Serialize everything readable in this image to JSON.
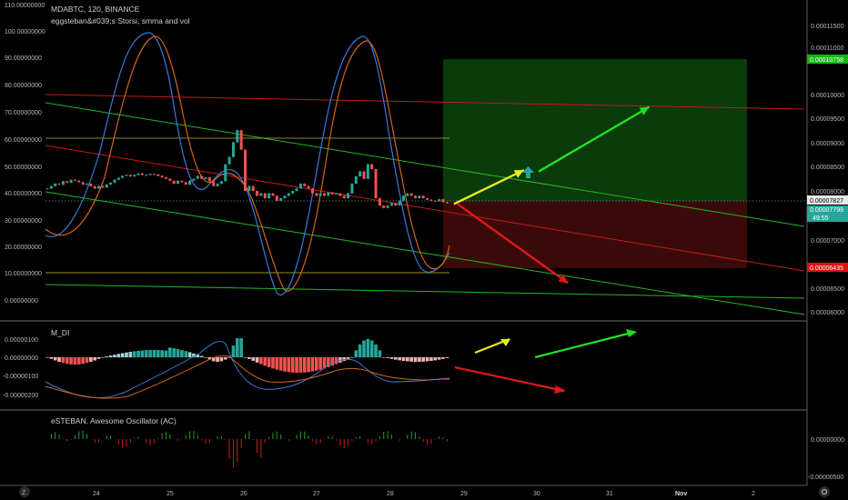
{
  "header": {
    "title": "MDABTC, 120, BINANCE",
    "indicator": "eggsteban&#039;s Storsi, smma and vol",
    "macd_title": "M_DI",
    "ao_title": "eSTEBAN. Awesome Oscillator (AC)"
  },
  "colors": {
    "up": "#26a69a",
    "down": "#ef5350",
    "green_line": "#22c422",
    "red_line": "#d01818",
    "yellow_line": "#c8c020",
    "blue_k": "#3b78d8",
    "orange_d": "#d0641c",
    "target_zone": "#0b3a0b",
    "stop_zone": "#3a0a0a",
    "price_badge": "#e8e8e8",
    "green_badge": "#14b814",
    "red_badge": "#e01010",
    "teal_badge": "#26a69a"
  },
  "chart_data": [
    {
      "type": "candlestick",
      "title": "MDABTC, 120, BINANCE",
      "x_ticks": [
        "24",
        "25",
        "26",
        "27",
        "28",
        "29",
        "30",
        "31",
        "Nov",
        "2"
      ],
      "left_axis_ticks": [
        "110.00000000",
        "100.00000000",
        "90.00000000",
        "80.00000000",
        "70.00000000",
        "60.00000000",
        "50.00000000",
        "40.00000000",
        "30.00000000",
        "20.00000000",
        "10.00000000",
        "0.00000000"
      ],
      "right_axis_ticks": [
        "0.00011500",
        "0.00011000",
        "0.00010000",
        "0.00009500",
        "0.00009000",
        "0.00008500",
        "0.00008000",
        "0.00007000",
        "0.00006500",
        "0.00006000",
        "0.00005500"
      ],
      "price_labels": {
        "last": "0.00007827",
        "current": "0.00007799",
        "countdown": "49:55",
        "target": "0.00010758",
        "stop": "0.00006435"
      },
      "ylim": [
        5.35e-05,
        0.0001185
      ],
      "closes": [
        8.1e-05,
        8.15e-05,
        8.2e-05,
        8.18e-05,
        8.25e-05,
        8.22e-05,
        8.28e-05,
        8.26e-05,
        8.23e-05,
        8.18e-05,
        8.2e-05,
        8.15e-05,
        8.1e-05,
        8.15e-05,
        8.12e-05,
        8.18e-05,
        8.22e-05,
        8.28e-05,
        8.32e-05,
        8.36e-05,
        8.38e-05,
        8.35e-05,
        8.38e-05,
        8.41e-05,
        8.38e-05,
        8.38e-05,
        8.4e-05,
        8.39e-05,
        8.36e-05,
        8.33e-05,
        8.3e-05,
        8.26e-05,
        8.2e-05,
        8.26e-05,
        8.23e-05,
        8.18e-05,
        8.26e-05,
        8.3e-05,
        8.36e-05,
        8.3e-05,
        8.33e-05,
        8.25e-05,
        8.15e-05,
        8.2e-05,
        8.25e-05,
        8.6e-05,
        8.75e-05,
        9.05e-05,
        9.3e-05,
        8.9e-05,
        8.05e-05,
        8.15e-05,
        8.05e-05,
        7.95e-05,
        8e-05,
        7.9e-05,
        8e-05,
        7.95e-05,
        7.85e-05,
        7.9e-05,
        7.95e-05,
        8e-05,
        8.05e-05,
        8.1e-05,
        8.2e-05,
        8.15e-05,
        8.1e-05,
        8e-05,
        7.95e-05,
        8e-05,
        7.95e-05,
        8.02e-05,
        7.98e-05,
        8e-05,
        7.95e-05,
        7.9e-05,
        8e-05,
        8.2e-05,
        8.35e-05,
        8.45e-05,
        8.3e-05,
        8.6e-05,
        8.5e-05,
        7.9e-05,
        7.75e-05,
        7.7e-05,
        7.75e-05,
        7.8e-05,
        7.75e-05,
        7.85e-05,
        7.95e-05,
        8e-05,
        7.95e-05,
        7.9e-05,
        7.95e-05,
        7.9e-05,
        7.87e-05,
        7.85e-05,
        7.84e-05,
        7.88e-05,
        7.82e-05,
        7.8e-05
      ],
      "projections": [
        {
          "name": "",
          "color": "#e8e820",
          "from": [
            7.78e-05,
            28.85
          ],
          "to": [
            8.48e-05,
            29.8
          ]
        },
        {
          "name": "",
          "color": "#22e022",
          "from": [
            8.45e-05,
            30.0
          ],
          "to": [
            9.78e-05,
            31.5
          ]
        },
        {
          "name": "",
          "color": "#e01818",
          "from": [
            7.78e-05,
            28.9
          ],
          "to": [
            6.15e-05,
            30.4
          ]
        }
      ]
    },
    {
      "type": "line",
      "title": "M_DI",
      "left_axis_ticks": [
        "0.00000100",
        "0.00000000",
        "-0.00000100",
        "-0.00000200"
      ],
      "ylim": [
        -2.5e-06,
        1.9e-06
      ]
    },
    {
      "type": "bar",
      "title": "eSTEBAN. Awesome Oscillator (AC)",
      "right_axis_ticks": [
        "0.00000000",
        "-0.00000500"
      ]
    }
  ]
}
